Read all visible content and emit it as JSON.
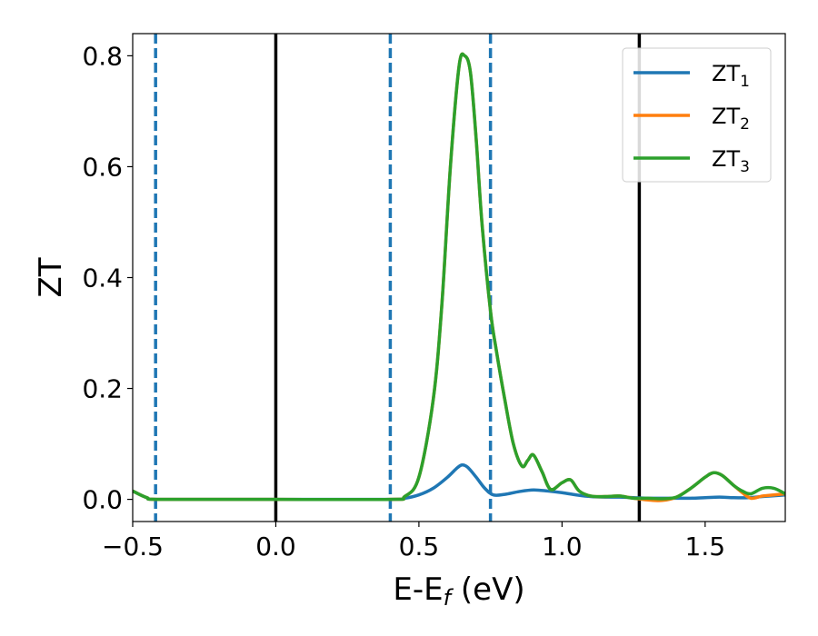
{
  "chart_data": {
    "type": "line",
    "xlabel": "E-E",
    "xlabel_sub": "f",
    "xlabel_unit": " (eV)",
    "ylabel": "ZT",
    "xlim": [
      -0.5,
      1.78
    ],
    "ylim": [
      -0.04,
      0.84
    ],
    "xticks": [
      -0.5,
      0.0,
      0.5,
      1.0,
      1.5
    ],
    "xtick_labels": [
      "−0.5",
      "0.0",
      "0.5",
      "1.0",
      "1.5"
    ],
    "yticks": [
      0.0,
      0.2,
      0.4,
      0.6,
      0.8
    ],
    "ytick_labels": [
      "0.0",
      "0.2",
      "0.4",
      "0.6",
      "0.8"
    ],
    "grid": false,
    "legend_position": "top-right",
    "vlines_solid": [
      0.0,
      1.27
    ],
    "vlines_dashed": [
      -0.42,
      0.4,
      0.75
    ],
    "vline_solid_color": "#000000",
    "vline_dashed_color": "#1f77b4",
    "series": [
      {
        "name": "ZT",
        "name_sub": "1",
        "color": "#1f77b4",
        "x": [
          -0.5,
          -0.45,
          -0.4,
          0.0,
          0.4,
          0.45,
          0.5,
          0.55,
          0.6,
          0.63,
          0.65,
          0.67,
          0.7,
          0.73,
          0.76,
          0.8,
          0.85,
          0.9,
          0.95,
          1.0,
          1.05,
          1.1,
          1.15,
          1.2,
          1.25,
          1.3,
          1.35,
          1.4,
          1.45,
          1.5,
          1.55,
          1.6,
          1.65,
          1.7,
          1.78
        ],
        "y": [
          0.015,
          0.003,
          0.0,
          0.0,
          0.0,
          0.002,
          0.008,
          0.02,
          0.04,
          0.055,
          0.062,
          0.058,
          0.04,
          0.02,
          0.008,
          0.009,
          0.014,
          0.017,
          0.015,
          0.012,
          0.008,
          0.005,
          0.004,
          0.004,
          0.003,
          0.002,
          0.002,
          0.002,
          0.002,
          0.003,
          0.004,
          0.003,
          0.003,
          0.005,
          0.008
        ]
      },
      {
        "name": "ZT",
        "name_sub": "2",
        "color": "#ff7f0e",
        "x": [
          -0.5,
          -0.45,
          -0.4,
          0.0,
          0.4,
          0.45,
          0.5,
          0.55,
          0.58,
          0.61,
          0.64,
          0.66,
          0.68,
          0.7,
          0.72,
          0.75,
          0.77,
          0.8,
          0.83,
          0.86,
          0.88,
          0.9,
          0.93,
          0.96,
          1.0,
          1.03,
          1.06,
          1.1,
          1.15,
          1.2,
          1.25,
          1.3,
          1.35,
          1.4,
          1.45,
          1.5,
          1.53,
          1.56,
          1.6,
          1.63,
          1.66,
          1.7,
          1.74,
          1.78
        ],
        "y": [
          0.015,
          0.003,
          0.0,
          0.0,
          0.0,
          0.005,
          0.04,
          0.18,
          0.35,
          0.6,
          0.78,
          0.8,
          0.77,
          0.65,
          0.5,
          0.34,
          0.27,
          0.18,
          0.1,
          0.06,
          0.07,
          0.08,
          0.05,
          0.018,
          0.03,
          0.035,
          0.015,
          0.006,
          0.005,
          0.006,
          0.002,
          -0.001,
          -0.002,
          0.004,
          0.02,
          0.04,
          0.048,
          0.043,
          0.025,
          0.012,
          0.002,
          0.006,
          0.008,
          0.01
        ]
      },
      {
        "name": "ZT",
        "name_sub": "3",
        "color": "#2ca02c",
        "x": [
          -0.5,
          -0.45,
          -0.4,
          0.0,
          0.4,
          0.45,
          0.5,
          0.55,
          0.58,
          0.61,
          0.64,
          0.66,
          0.68,
          0.7,
          0.72,
          0.75,
          0.77,
          0.8,
          0.83,
          0.86,
          0.88,
          0.9,
          0.93,
          0.96,
          1.0,
          1.03,
          1.06,
          1.1,
          1.15,
          1.2,
          1.25,
          1.3,
          1.35,
          1.4,
          1.45,
          1.5,
          1.53,
          1.56,
          1.6,
          1.63,
          1.66,
          1.7,
          1.74,
          1.78
        ],
        "y": [
          0.015,
          0.003,
          0.0,
          0.0,
          0.0,
          0.005,
          0.04,
          0.18,
          0.35,
          0.6,
          0.78,
          0.8,
          0.77,
          0.65,
          0.5,
          0.34,
          0.27,
          0.18,
          0.1,
          0.06,
          0.07,
          0.08,
          0.05,
          0.018,
          0.03,
          0.035,
          0.015,
          0.006,
          0.005,
          0.006,
          0.002,
          0.002,
          0.001,
          0.004,
          0.02,
          0.04,
          0.048,
          0.043,
          0.025,
          0.015,
          0.01,
          0.02,
          0.02,
          0.01
        ]
      }
    ]
  }
}
